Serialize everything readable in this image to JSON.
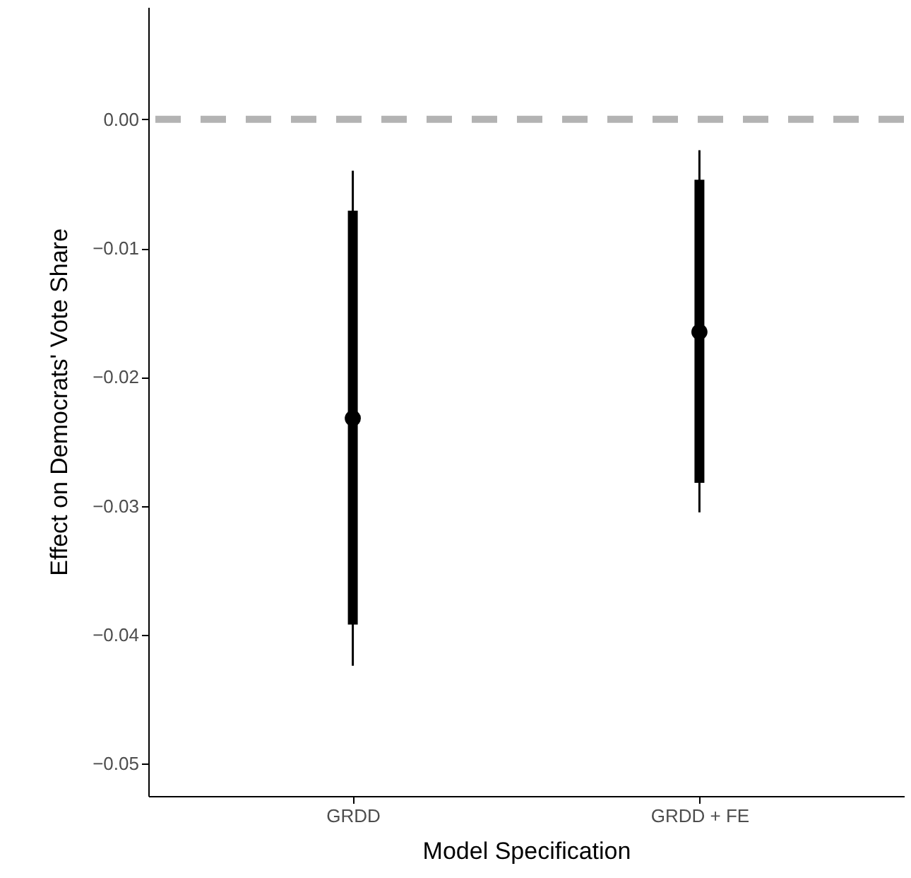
{
  "chart_data": {
    "type": "scatter",
    "xlabel": "Model Specification",
    "ylabel": "Effect on Democrats' Vote Share",
    "categories": [
      "GRDD",
      "GRDD + FE"
    ],
    "series": [
      {
        "type": "bar",
        "color": "#000000",
        "base": [
          -0.0392,
          -0.0282
        ],
        "values": [
          0.0321,
          0.0235
        ]
      },
      {
        "color": "#000000",
        "values": [
          -0.0232,
          -0.0165
        ],
        "errors": [
          [
            -0.0424,
            -0.004
          ],
          [
            -0.0305,
            -0.0024
          ]
        ]
      }
    ],
    "ylim": [
      -0.0525,
      0.0087
    ],
    "yticks": [
      {
        "value": 0,
        "label": "0.00"
      },
      {
        "value": -0.01,
        "label": "−0.01"
      },
      {
        "value": -0.02,
        "label": "−0.02"
      },
      {
        "value": -0.03,
        "label": "−0.03"
      },
      {
        "value": -0.04,
        "label": "−0.04"
      },
      {
        "value": -0.05,
        "label": "−0.05"
      }
    ],
    "ref_lines": [
      {
        "axis": "y",
        "value": 0,
        "color": "#b3b3b3",
        "line_style": "dashed"
      }
    ],
    "grid": false,
    "marker": "circle"
  }
}
